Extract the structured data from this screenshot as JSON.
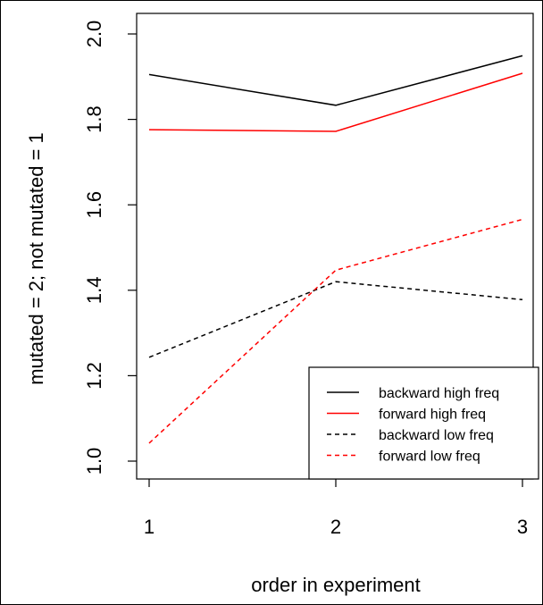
{
  "chart_data": {
    "type": "line",
    "title": "",
    "xlabel": "order in experiment",
    "ylabel": "mutated = 2; not mutated = 1",
    "x": [
      1,
      2,
      3
    ],
    "xticks": [
      "1",
      "2",
      "3"
    ],
    "yticks": [
      "1.0",
      "1.2",
      "1.4",
      "1.6",
      "1.8",
      "2.0"
    ],
    "xlim": [
      0.96,
      3.04
    ],
    "ylim": [
      1.0,
      2.0
    ],
    "grid": false,
    "legend_position": "bottom-right",
    "series": [
      {
        "name": "backward high freq",
        "values": [
          1.905,
          1.833,
          1.949
        ],
        "color": "#000000",
        "dash": "solid"
      },
      {
        "name": "forward high freq",
        "values": [
          1.776,
          1.772,
          1.908
        ],
        "color": "#ff0000",
        "dash": "solid"
      },
      {
        "name": "backward low freq",
        "values": [
          1.243,
          1.42,
          1.378
        ],
        "color": "#000000",
        "dash": "dashed"
      },
      {
        "name": "forward low freq",
        "values": [
          1.042,
          1.447,
          1.566
        ],
        "color": "#ff0000",
        "dash": "dashed"
      }
    ]
  }
}
